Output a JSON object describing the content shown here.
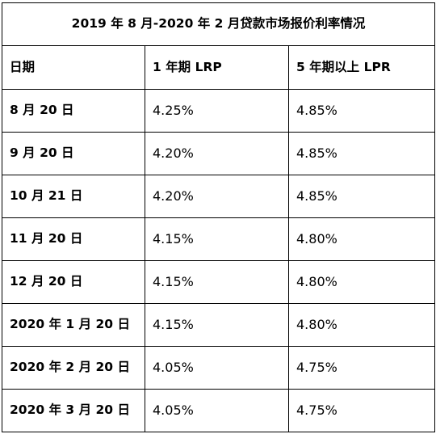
{
  "table": {
    "title": "2019 年 8 月-2020 年 2 月贷款市场报价利率情况",
    "headers": [
      "日期",
      "1 年期 LRP",
      "5 年期以上 LPR"
    ],
    "rows": [
      [
        "8 月 20 日",
        "4.25%",
        "4.85%"
      ],
      [
        "9 月 20 日",
        "4.20%",
        "4.85%"
      ],
      [
        "10 月 21 日",
        "4.20%",
        "4.85%"
      ],
      [
        "11 月 20 日",
        "4.15%",
        "4.80%"
      ],
      [
        "12 月 20 日",
        "4.15%",
        "4.80%"
      ],
      [
        "2020 年 1 月 20 日",
        "4.15%",
        "4.80%"
      ],
      [
        "2020 年 2 月 20 日",
        "4.05%",
        "4.75%"
      ],
      [
        "2020 年 3 月 20 日",
        "4.05%",
        "4.75%"
      ]
    ]
  }
}
